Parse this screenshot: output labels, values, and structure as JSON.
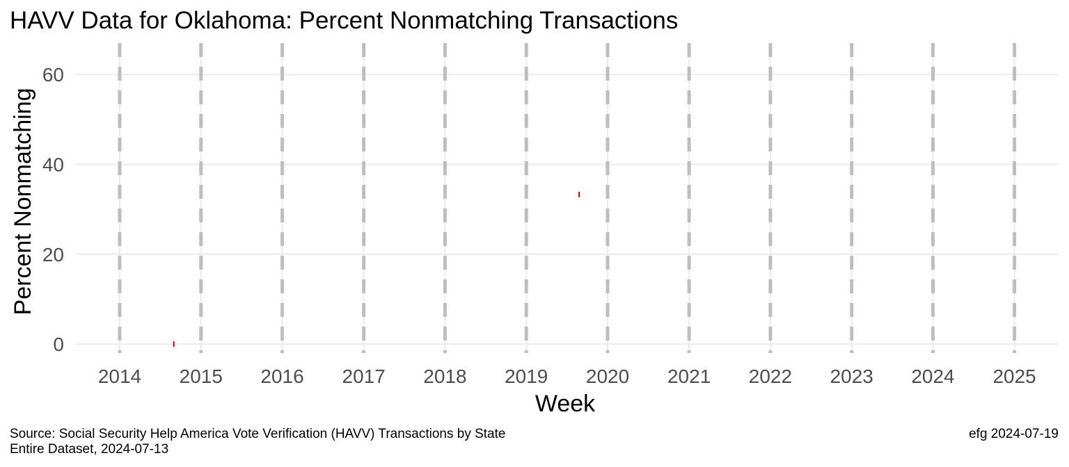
{
  "chart_data": {
    "type": "scatter",
    "title": "HAVV Data for Oklahoma:  Percent Nonmatching Transactions",
    "xlabel": "Week",
    "ylabel": "Percent Nonmatching",
    "x_ticks": [
      "2014",
      "2015",
      "2016",
      "2017",
      "2018",
      "2019",
      "2020",
      "2021",
      "2022",
      "2023",
      "2024",
      "2025"
    ],
    "y_ticks": [
      0,
      20,
      40,
      60
    ],
    "xlim": [
      "2013-06-15",
      "2025-07-15"
    ],
    "ylim": [
      -2,
      67
    ],
    "grid": true,
    "year_boundary_lines": "dashed",
    "series": [
      {
        "color": "#dd0000",
        "points": [
          {
            "x": "2014-09-01",
            "y": 0
          },
          {
            "x": "2019-08-26",
            "y": 33.3
          }
        ]
      }
    ]
  },
  "caption": {
    "source_line1": "Source:  Social Security Help America Vote Verification (HAVV) Transactions by State",
    "source_line2": "Entire Dataset, 2024-07-13",
    "credit": "efg 2024-07-19"
  }
}
